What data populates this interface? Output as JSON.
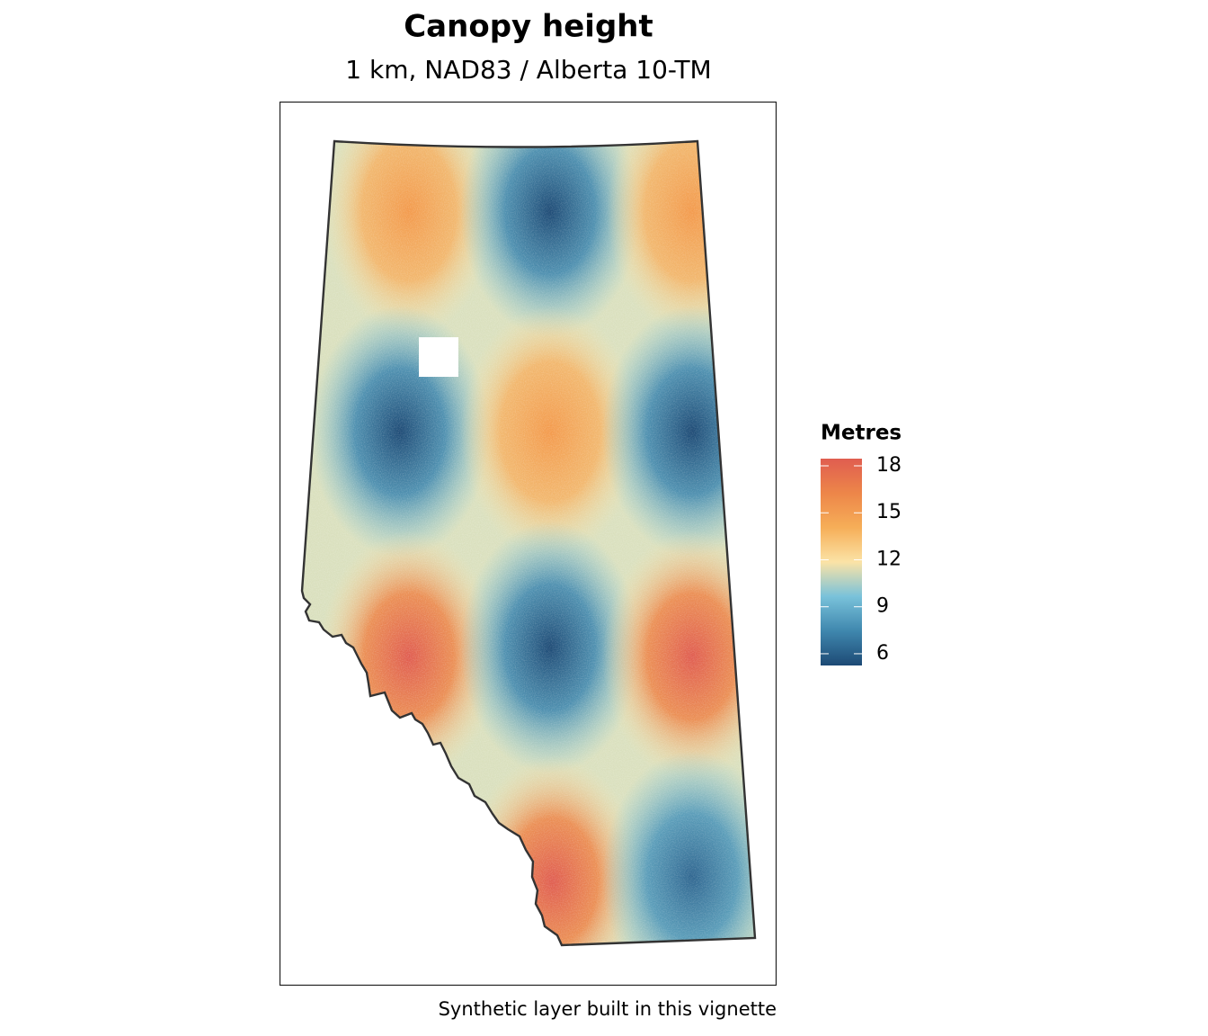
{
  "map": {
    "title": "Canopy height",
    "subtitle": "1 km, NAD83 / Alberta 10-TM",
    "caption": "Synthetic layer built in this vignette",
    "legend": {
      "title": "Metres",
      "limits": [
        5.25,
        18.46
      ],
      "ticks": [
        6,
        9,
        12,
        15,
        18
      ],
      "colors": [
        "#1d4a75",
        "#3f87ae",
        "#79c2da",
        "#fbe3a6",
        "#f6ae58",
        "#ed8649",
        "#e05d50"
      ]
    }
  }
}
